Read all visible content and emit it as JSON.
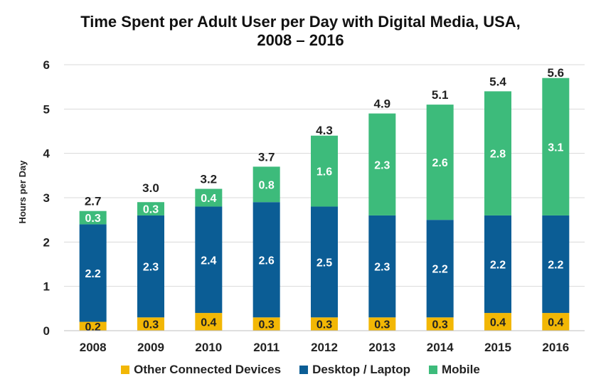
{
  "chart_data": {
    "type": "bar",
    "stacked": true,
    "title_lines": [
      "Time Spent per Adult User per Day with Digital Media, USA,",
      "2008 – 2016"
    ],
    "xlabel": "",
    "ylabel": "Hours per Day",
    "ylim": [
      0,
      6
    ],
    "yticks": [
      "0",
      "1",
      "2",
      "3",
      "4",
      "5",
      "6"
    ],
    "categories": [
      "2008",
      "2009",
      "2010",
      "2011",
      "2012",
      "2013",
      "2014",
      "2015",
      "2016"
    ],
    "series": [
      {
        "name": "Other Connected Devices",
        "color": "#f2b705",
        "values": [
          0.2,
          0.3,
          0.4,
          0.3,
          0.3,
          0.3,
          0.3,
          0.4,
          0.4
        ],
        "labels": [
          "0.2",
          "0.3",
          "0.4",
          "0.3",
          "0.3",
          "0.3",
          "0.3",
          "0.4",
          "0.4"
        ],
        "label_color": "#222222"
      },
      {
        "name": "Desktop / Laptop",
        "color": "#0b5d95",
        "values": [
          2.2,
          2.3,
          2.4,
          2.6,
          2.5,
          2.3,
          2.2,
          2.2,
          2.2
        ],
        "labels": [
          "2.2",
          "2.3",
          "2.4",
          "2.6",
          "2.5",
          "2.3",
          "2.2",
          "2.2",
          "2.2"
        ],
        "label_color": "#ffffff"
      },
      {
        "name": "Mobile",
        "color": "#3dbb7b",
        "values": [
          0.3,
          0.3,
          0.4,
          0.8,
          1.6,
          2.3,
          2.6,
          2.8,
          3.1
        ],
        "labels": [
          "0.3",
          "0.3",
          "0.4",
          "0.8",
          "1.6",
          "2.3",
          "2.6",
          "2.8",
          "3.1"
        ],
        "label_color": "#ffffff"
      }
    ],
    "totals": [
      2.7,
      3.0,
      3.2,
      3.7,
      4.3,
      4.9,
      5.1,
      5.4,
      5.6
    ],
    "total_labels": [
      "2.7",
      "3.0",
      "3.2",
      "3.7",
      "4.3",
      "4.9",
      "5.1",
      "5.4",
      "5.6"
    ],
    "grid": true,
    "legend_position": "bottom"
  }
}
